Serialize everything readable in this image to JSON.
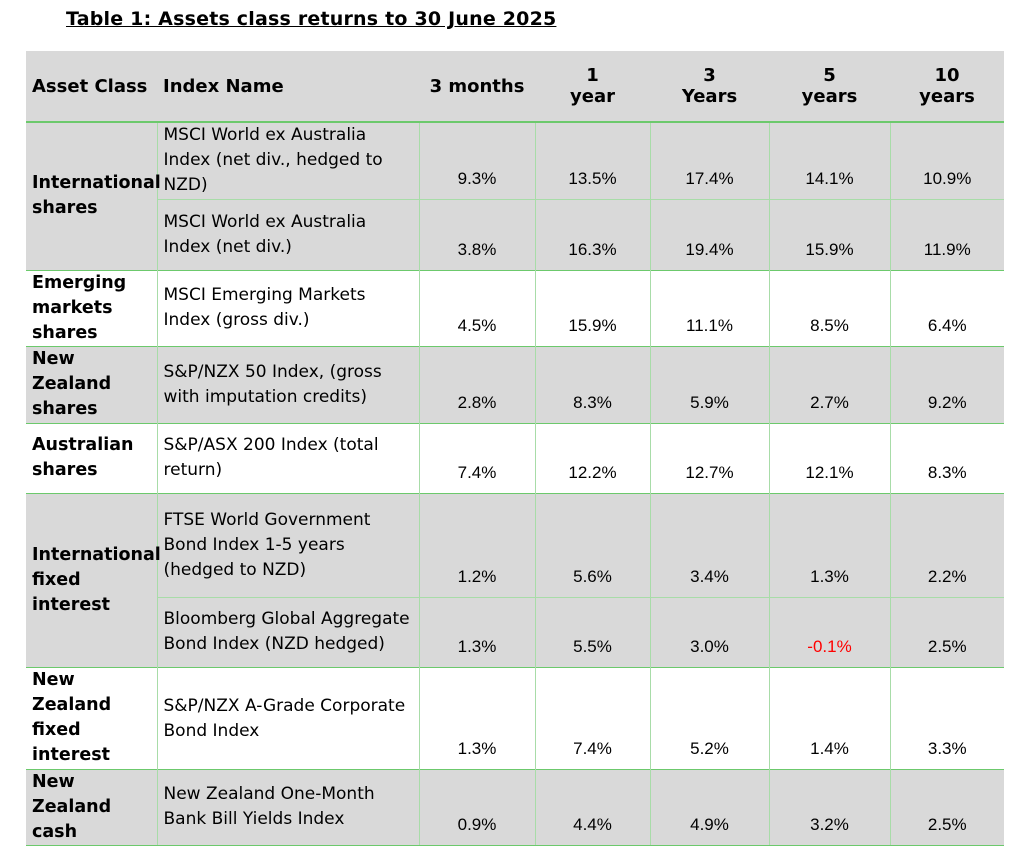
{
  "title": "Table 1: Assets class returns to 30 June 2025",
  "headers": {
    "asset_class": "Asset Class",
    "index_name": "Index Name",
    "m3_line1": "3 months",
    "y1_line1": "1",
    "y1_line2": "year",
    "y3_line1": "3",
    "y3_line2": "Years",
    "y5_line1": "5",
    "y5_line2": "years",
    "y10_line1": "10",
    "y10_line2": "years"
  },
  "rows": [
    {
      "asset_class": "International shares",
      "index_name": "MSCI World ex Australia Index (net div., hedged to NZD)",
      "m3": "9.3%",
      "y1": "13.5%",
      "y3": "17.4%",
      "y5": "14.1%",
      "y10": "10.9%"
    },
    {
      "index_name": "MSCI World ex Australia Index (net div.)",
      "m3": "3.8%",
      "y1": "16.3%",
      "y3": "19.4%",
      "y5": "15.9%",
      "y10": "11.9%"
    },
    {
      "asset_class": "Emerging markets shares",
      "index_name": "MSCI Emerging Markets Index (gross div.)",
      "m3": "4.5%",
      "y1": "15.9%",
      "y3": "11.1%",
      "y5": "8.5%",
      "y10": "6.4%"
    },
    {
      "asset_class": "New Zealand shares",
      "index_name": "S&P/NZX 50 Index, (gross with imputation credits)",
      "m3": "2.8%",
      "y1": "8.3%",
      "y3": "5.9%",
      "y5": "2.7%",
      "y10": "9.2%"
    },
    {
      "asset_class": "Australian shares",
      "index_name": "S&P/ASX 200 Index (total return)",
      "m3": "7.4%",
      "y1": "12.2%",
      "y3": "12.7%",
      "y5": "12.1%",
      "y10": "8.3%"
    },
    {
      "asset_class": "International fixed interest",
      "index_name": "FTSE World Government Bond Index 1-5 years (hedged to NZD)",
      "m3": "1.2%",
      "y1": "5.6%",
      "y3": "3.4%",
      "y5": "1.3%",
      "y10": "2.2%"
    },
    {
      "index_name": "Bloomberg Global Aggregate Bond Index (NZD hedged)",
      "m3": "1.3%",
      "y1": "5.5%",
      "y3": "3.0%",
      "y5": "-0.1%",
      "y10": "2.5%"
    },
    {
      "asset_class": "New Zealand fixed interest",
      "index_name": "S&P/NZX A-Grade Corporate Bond Index",
      "m3": "1.3%",
      "y1": "7.4%",
      "y3": "5.2%",
      "y5": "1.4%",
      "y10": "3.3%"
    },
    {
      "asset_class": "New Zealand cash",
      "index_name": "New Zealand One-Month Bank Bill Yields Index",
      "m3": "0.9%",
      "y1": "4.4%",
      "y3": "4.9%",
      "y5": "3.2%",
      "y10": "2.5%"
    }
  ],
  "colors": {
    "header_bg": "#d9d9d9",
    "grid_green": "#6cc96c",
    "negative": "#ff0000"
  }
}
